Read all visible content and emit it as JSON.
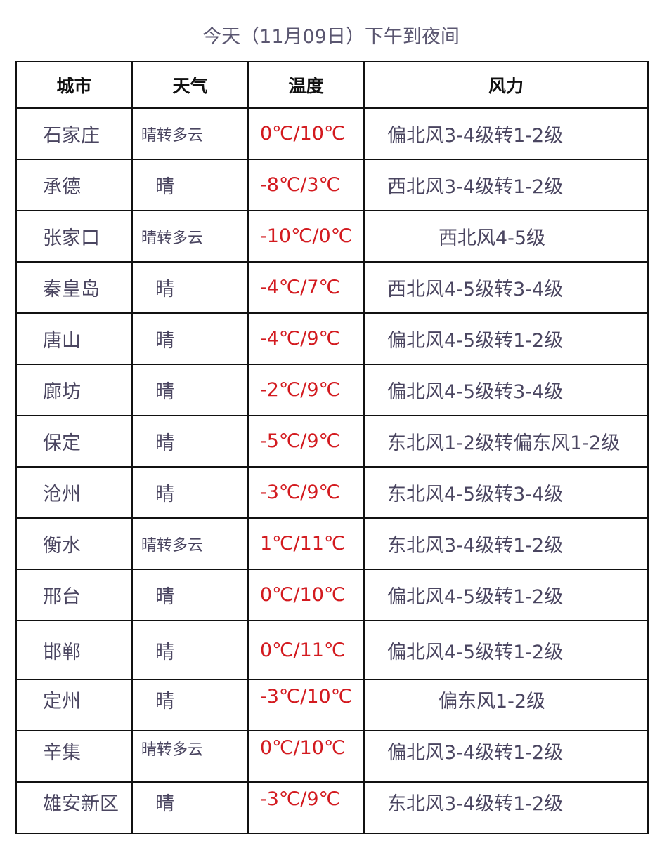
{
  "title": "今天（11月09日）下午到夜间",
  "colors": {
    "temperature": "#d31a1f",
    "text": "#4a4560",
    "border": "#111111"
  },
  "table": {
    "headers": [
      "城市",
      "天气",
      "温度",
      "风力"
    ],
    "rows": [
      {
        "city": "石家庄",
        "weather": "晴转多云",
        "temp": "0℃/10℃",
        "wind": "偏北风3-4级转1-2级"
      },
      {
        "city": "承德",
        "weather": "晴",
        "temp": "-8℃/3℃",
        "wind": "西北风3-4级转1-2级"
      },
      {
        "city": "张家口",
        "weather": "晴转多云",
        "temp": "-10℃/0℃",
        "wind": "西北风4-5级"
      },
      {
        "city": "秦皇岛",
        "weather": "晴",
        "temp": "-4℃/7℃",
        "wind": "西北风4-5级转3-4级"
      },
      {
        "city": "唐山",
        "weather": "晴",
        "temp": "-4℃/9℃",
        "wind": "偏北风4-5级转1-2级"
      },
      {
        "city": "廊坊",
        "weather": "晴",
        "temp": "-2℃/9℃",
        "wind": "偏北风4-5级转3-4级"
      },
      {
        "city": "保定",
        "weather": "晴",
        "temp": "-5℃/9℃",
        "wind": "东北风1-2级转偏东风1-2级"
      },
      {
        "city": "沧州",
        "weather": "晴",
        "temp": "-3℃/9℃",
        "wind": "东北风4-5级转3-4级"
      },
      {
        "city": "衡水",
        "weather": "晴转多云",
        "temp": "1℃/11℃",
        "wind": "东北风3-4级转1-2级"
      },
      {
        "city": "邢台",
        "weather": "晴",
        "temp": "0℃/10℃",
        "wind": "偏北风4-5级转1-2级"
      },
      {
        "city": "邯郸",
        "weather": "晴",
        "temp": "0℃/11℃",
        "wind": "偏北风4-5级转1-2级"
      },
      {
        "city": "定州",
        "weather": "晴",
        "temp": "-3℃/10℃",
        "wind": "偏东风1-2级"
      },
      {
        "city": "辛集",
        "weather": "晴转多云",
        "temp": "0℃/10℃",
        "wind": "偏北风3-4级转1-2级"
      },
      {
        "city": "雄安新区",
        "weather": "晴",
        "temp": "-3℃/9℃",
        "wind": "东北风3-4级转1-2级"
      }
    ]
  }
}
